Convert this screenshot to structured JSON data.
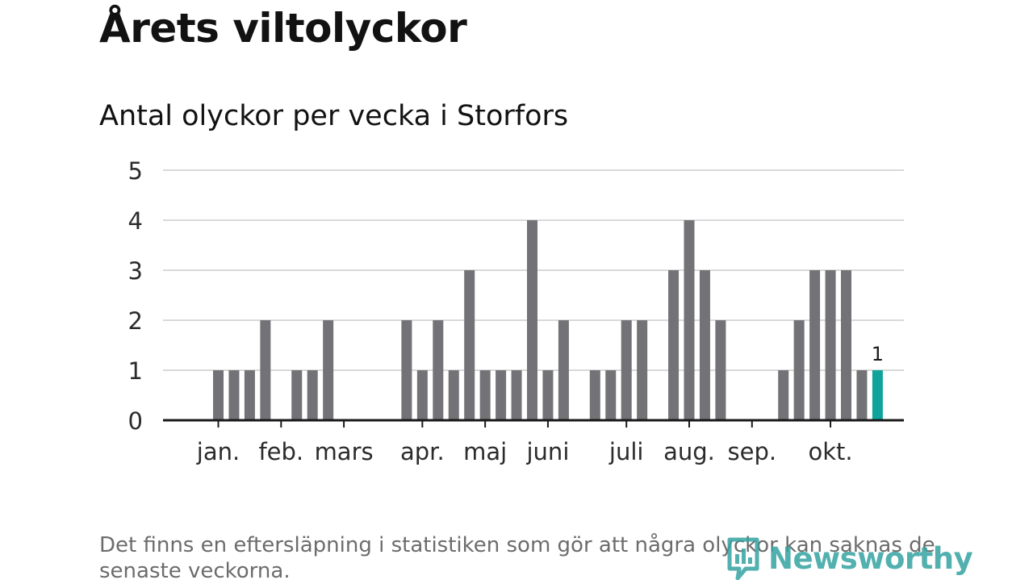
{
  "header": {
    "title": "Årets viltolyckor",
    "subtitle": "Antal olyckor per vecka i Storfors"
  },
  "footer": {
    "note_line1": "Det finns en eftersläpning i statistiken som gör att några olyckor kan saknas de",
    "note_line2": "senaste veckorna.",
    "brand": "Newsworthy"
  },
  "colors": {
    "bar": "#737276",
    "highlight": "#0ea39b",
    "grid": "#d9d9d9",
    "axis": "#1a1a1a",
    "brand": "#34a3a2"
  },
  "chart_data": {
    "type": "bar",
    "title": "Antal olyckor per vecka i Storfors",
    "xlabel": "",
    "ylabel": "",
    "ylim": [
      0,
      5
    ],
    "yticks": [
      0,
      1,
      2,
      3,
      4,
      5
    ],
    "grid": true,
    "weeks": [
      1,
      2,
      3,
      4,
      5,
      6,
      7,
      8,
      9,
      10,
      11,
      12,
      13,
      14,
      15,
      16,
      17,
      18,
      19,
      20,
      21,
      22,
      23,
      24,
      25,
      26,
      27,
      28,
      29,
      30,
      31,
      32,
      33,
      34,
      35,
      36,
      37,
      38,
      39,
      40,
      41,
      42,
      43,
      44
    ],
    "values": [
      0,
      0,
      1,
      1,
      1,
      2,
      0,
      1,
      1,
      2,
      0,
      0,
      0,
      0,
      2,
      1,
      2,
      1,
      3,
      1,
      1,
      1,
      4,
      1,
      2,
      0,
      1,
      1,
      2,
      2,
      0,
      3,
      4,
      3,
      2,
      0,
      0,
      0,
      1,
      2,
      3,
      3,
      3,
      1
    ],
    "highlight": {
      "week": 45,
      "value": 1,
      "label": "1"
    },
    "month_labels": [
      {
        "label": "jan.",
        "week": 3
      },
      {
        "label": "feb.",
        "week": 7
      },
      {
        "label": "mars",
        "week": 11
      },
      {
        "label": "apr.",
        "week": 16
      },
      {
        "label": "maj",
        "week": 20
      },
      {
        "label": "juni",
        "week": 24
      },
      {
        "label": "juli",
        "week": 29
      },
      {
        "label": "aug.",
        "week": 33
      },
      {
        "label": "sep.",
        "week": 37
      },
      {
        "label": "okt.",
        "week": 42
      }
    ]
  }
}
